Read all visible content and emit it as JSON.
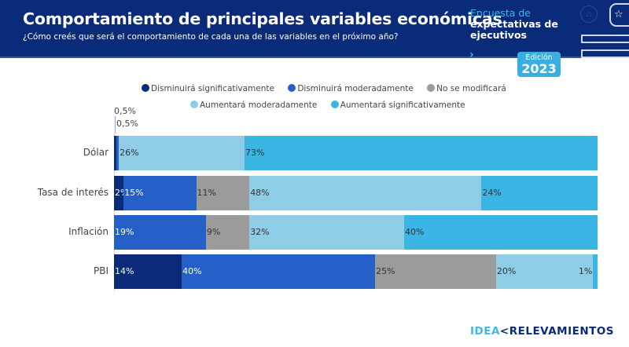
{
  "header": {
    "title": "Comportamiento de principales variables económicas",
    "subtitle": "¿Cómo creés que será el comportamiento de cada una de las variables en el próximo año?",
    "survey_line1": "Encuesta de",
    "survey_line2": "expectativas de",
    "survey_line3": "ejecutivos",
    "edition_label": "Edición",
    "edition_year": "2023",
    "chevron_icon": "›",
    "triangle_icon": "△",
    "star_icon": "☆"
  },
  "footer": {
    "logo_idea": "IDEA",
    "logo_arrow": "<",
    "logo_rest": "RELEVAMIENTOS"
  },
  "chart_data": {
    "type": "bar",
    "orientation": "horizontal",
    "stacked": true,
    "title": "Comportamiento de principales variables económicas",
    "xlabel": "",
    "ylabel": "",
    "xlim": [
      0,
      100
    ],
    "legend_position": "top",
    "grid": false,
    "categories": [
      "Dólar",
      "Tasa de interés",
      "Inflación",
      "PBI"
    ],
    "series": [
      {
        "name": "Disminuirá significativamente",
        "color": "#0b2a78",
        "label_color": "#ffffff",
        "values": [
          0.5,
          2,
          0,
          14
        ],
        "labels": [
          "",
          "2%",
          "",
          "14%"
        ]
      },
      {
        "name": "Disminuirá moderadamente",
        "color": "#2460c8",
        "label_color": "#ffffff",
        "values": [
          0.5,
          15,
          19,
          40
        ],
        "labels": [
          "",
          "15%",
          "19%",
          "40%"
        ]
      },
      {
        "name": "No se modificará",
        "color": "#9b9b9b",
        "label_color": "#333333",
        "values": [
          0,
          11,
          9,
          25
        ],
        "labels": [
          "",
          "11%",
          "9%",
          "25%"
        ]
      },
      {
        "name": "Aumentará moderadamente",
        "color": "#8fcde6",
        "label_color": "#333333",
        "values": [
          26,
          48,
          32,
          20
        ],
        "labels": [
          "26%",
          "48%",
          "32%",
          "20%"
        ]
      },
      {
        "name": "Aumentará significativamente",
        "color": "#3bb5e4",
        "label_color": "#333333",
        "values": [
          73,
          24,
          40,
          1
        ],
        "labels": [
          "73%",
          "24%",
          "40%",
          "1%"
        ]
      }
    ],
    "annotations": [
      "0,5%",
      "0,5%"
    ]
  }
}
